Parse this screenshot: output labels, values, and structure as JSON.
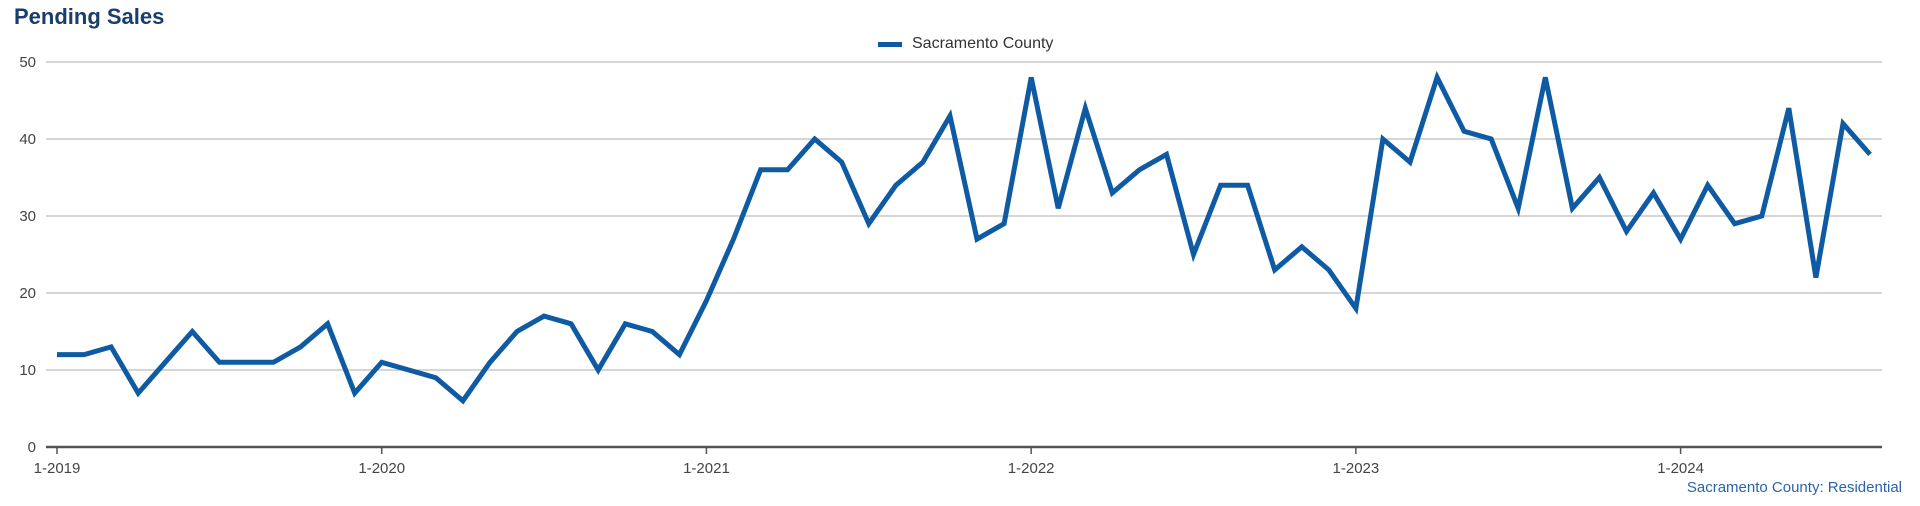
{
  "title": "Pending Sales",
  "footer_note": "Sacramento County: Residential",
  "colors": {
    "series": "#0e5ba4",
    "grid": "#bdbdbd",
    "axis": "#555555",
    "title": "#1a3e6b",
    "footer": "#2a64a8"
  },
  "chart_data": {
    "type": "line",
    "title": "Pending Sales",
    "x_start": "1-2019",
    "x_labels": [
      "1-2019",
      "1-2020",
      "1-2021",
      "1-2022",
      "1-2023",
      "1-2024"
    ],
    "ylim": [
      0,
      50
    ],
    "y_ticks": [
      0,
      10,
      20,
      30,
      40,
      50
    ],
    "grid": true,
    "legend_position": "top-center",
    "series": [
      {
        "name": "Sacramento County",
        "values": [
          12,
          12,
          13,
          7,
          11,
          15,
          11,
          11,
          11,
          13,
          16,
          7,
          11,
          10,
          9,
          6,
          11,
          15,
          17,
          16,
          10,
          16,
          15,
          12,
          19,
          27,
          36,
          36,
          40,
          37,
          29,
          34,
          37,
          43,
          27,
          29,
          48,
          31,
          44,
          33,
          36,
          38,
          25,
          34,
          34,
          23,
          26,
          23,
          18,
          40,
          37,
          48,
          41,
          40,
          31,
          48,
          31,
          35,
          28,
          33,
          27,
          34,
          29,
          30,
          44,
          22,
          42,
          38
        ]
      }
    ]
  }
}
